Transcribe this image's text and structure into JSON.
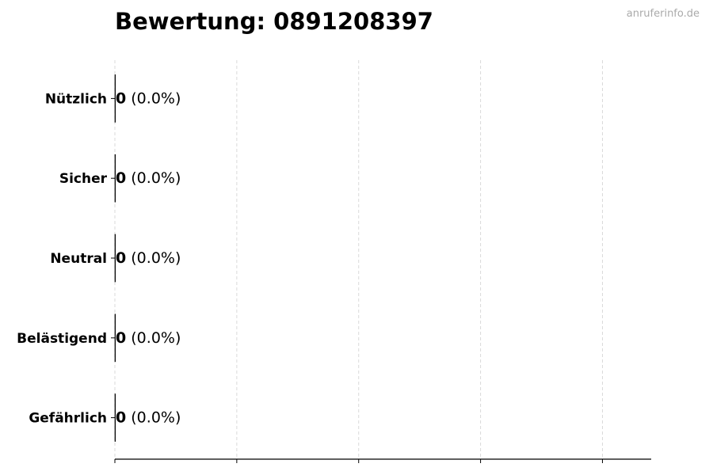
{
  "chart_data": {
    "type": "bar",
    "orientation": "horizontal",
    "title": "Bewertung: 0891208397",
    "watermark": "anruferinfo.de",
    "categories": [
      "Nützlich",
      "Sicher",
      "Neutral",
      "Belästigend",
      "Gefährlich"
    ],
    "values": [
      0,
      0,
      0,
      0,
      0
    ],
    "data_labels": [
      {
        "count": "0",
        "percent": "(0.0%)"
      },
      {
        "count": "0",
        "percent": "(0.0%)"
      },
      {
        "count": "0",
        "percent": "(0.0%)"
      },
      {
        "count": "0",
        "percent": "(0.0%)"
      },
      {
        "count": "0",
        "percent": "(0.0%)"
      }
    ],
    "xlabel": "",
    "ylabel": "",
    "xlim": [
      0,
      4.4
    ],
    "xticks": [
      0,
      1,
      2,
      3,
      4
    ],
    "xtick_labels_shown": false,
    "grid": "vertical dashed",
    "colors": {
      "grid": "#d9d9d9",
      "bar_edge": "#000000",
      "watermark": "#aaaaaa"
    }
  }
}
